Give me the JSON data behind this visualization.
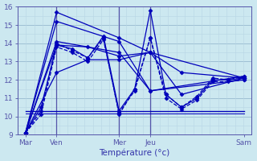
{
  "xlabel": "Température (°c)",
  "ylim": [
    9,
    16
  ],
  "xlim": [
    0,
    120
  ],
  "yticks": [
    9,
    10,
    11,
    12,
    13,
    14,
    15,
    16
  ],
  "xtick_positions": [
    4,
    20,
    52,
    68,
    116
  ],
  "xtick_labels": [
    "Mar",
    "Ven",
    "Mer",
    "Jeu",
    "Sam"
  ],
  "bg_color": "#cce8f0",
  "grid_major_color": "#99bbd0",
  "grid_minor_color": "#b8d5e4",
  "line_color": "#0000bb",
  "vline_positions": [
    20,
    52,
    68
  ],
  "vline_color": "#5555aa",
  "series": [
    {
      "x": [
        4,
        20,
        52,
        68,
        116
      ],
      "y": [
        9.1,
        15.7,
        14.3,
        13.5,
        12.1
      ],
      "style": "solid",
      "marker": "D",
      "lw": 0.9
    },
    {
      "x": [
        4,
        20,
        52,
        68,
        116
      ],
      "y": [
        9.1,
        15.2,
        14.1,
        11.4,
        12.0
      ],
      "style": "solid",
      "marker": "D",
      "lw": 0.9
    },
    {
      "x": [
        4,
        20,
        52,
        68,
        116
      ],
      "y": [
        9.1,
        14.1,
        13.5,
        11.4,
        12.2
      ],
      "style": "solid",
      "marker": "D",
      "lw": 0.9
    },
    {
      "x": [
        4,
        20,
        36,
        52,
        68,
        84,
        116
      ],
      "y": [
        9.1,
        13.9,
        13.8,
        13.3,
        13.5,
        12.4,
        12.1
      ],
      "style": "solid",
      "marker": "D",
      "lw": 0.9
    },
    {
      "x": [
        4,
        20,
        36,
        52,
        68,
        84,
        116
      ],
      "y": [
        9.1,
        12.4,
        13.1,
        13.1,
        13.5,
        11.2,
        12.1
      ],
      "style": "solid",
      "marker": "D",
      "lw": 0.9
    },
    {
      "x": [
        4,
        12,
        20,
        28,
        36,
        44,
        52,
        60,
        68,
        76,
        84,
        92,
        100,
        108,
        116
      ],
      "y": [
        9.1,
        10.5,
        13.9,
        13.7,
        13.2,
        14.4,
        10.3,
        11.5,
        15.8,
        11.2,
        10.5,
        11.0,
        12.0,
        12.0,
        12.1
      ],
      "style": "solid",
      "marker": "D",
      "lw": 0.9
    },
    {
      "x": [
        4,
        12,
        20,
        28,
        36,
        44,
        52,
        60,
        68,
        76,
        84,
        92,
        100,
        108,
        116
      ],
      "y": [
        9.1,
        10.3,
        14.0,
        13.6,
        13.2,
        14.3,
        10.1,
        11.5,
        14.3,
        11.2,
        10.5,
        11.1,
        12.1,
        12.0,
        12.2
      ],
      "style": "dashed",
      "marker": "D",
      "lw": 0.9
    },
    {
      "x": [
        4,
        12,
        20,
        28,
        36,
        44,
        52,
        60,
        68,
        76,
        84,
        92,
        100,
        108,
        116
      ],
      "y": [
        9.1,
        10.1,
        13.8,
        13.5,
        13.0,
        14.2,
        10.2,
        11.4,
        14.3,
        11.0,
        10.4,
        10.9,
        11.9,
        11.9,
        12.0
      ],
      "style": "dashed",
      "marker": "D",
      "lw": 0.9
    },
    {
      "x": [
        4,
        116
      ],
      "y": [
        10.3,
        10.3
      ],
      "style": "solid",
      "marker": null,
      "lw": 1.0
    },
    {
      "x": [
        4,
        116
      ],
      "y": [
        10.15,
        10.15
      ],
      "style": "solid",
      "marker": null,
      "lw": 0.7
    }
  ]
}
